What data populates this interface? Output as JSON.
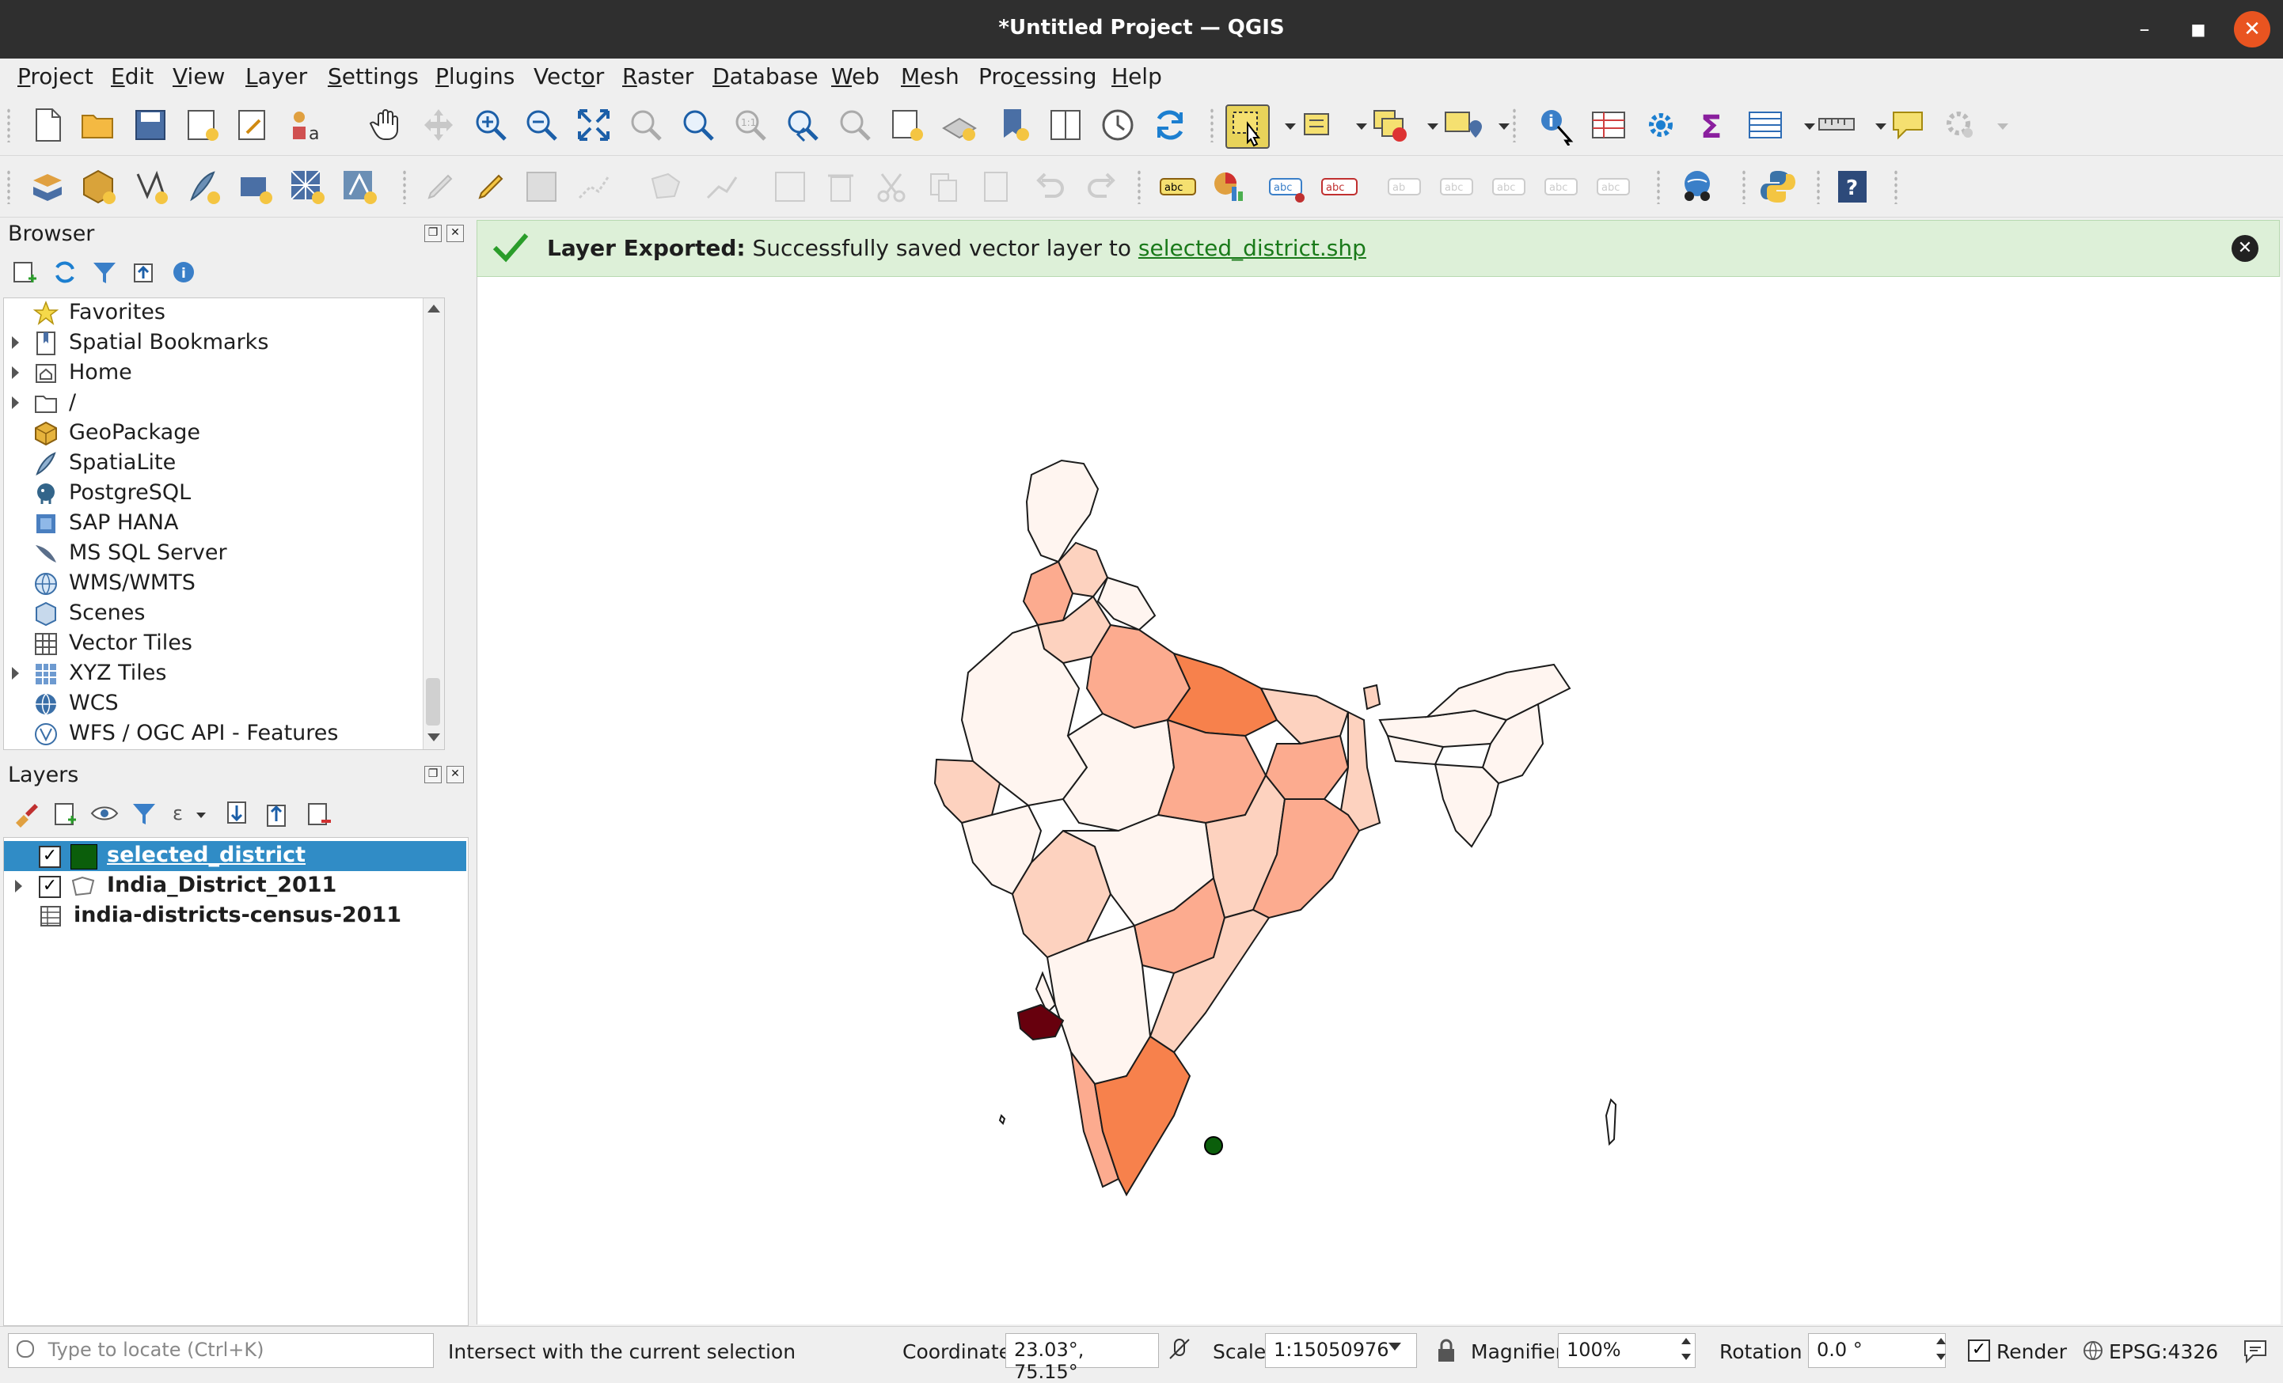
{
  "window": {
    "title": "*Untitled Project — QGIS"
  },
  "menubar": [
    {
      "pre": "",
      "u": "P",
      "post": "roject"
    },
    {
      "pre": "",
      "u": "E",
      "post": "dit"
    },
    {
      "pre": "",
      "u": "V",
      "post": "iew"
    },
    {
      "pre": "",
      "u": "L",
      "post": "ayer"
    },
    {
      "pre": "",
      "u": "S",
      "post": "ettings"
    },
    {
      "pre": "",
      "u": "P",
      "post": "lugins"
    },
    {
      "pre": "Vect",
      "u": "o",
      "post": "r"
    },
    {
      "pre": "",
      "u": "R",
      "post": "aster"
    },
    {
      "pre": "",
      "u": "D",
      "post": "atabase"
    },
    {
      "pre": "",
      "u": "W",
      "post": "eb"
    },
    {
      "pre": "",
      "u": "M",
      "post": "esh"
    },
    {
      "pre": "Pro",
      "u": "c",
      "post": "essing"
    },
    {
      "pre": "",
      "u": "H",
      "post": "elp"
    }
  ],
  "browser": {
    "title": "Browser",
    "items": [
      {
        "label": "Favorites",
        "icon": "star-icon",
        "expandable": false
      },
      {
        "label": "Spatial Bookmarks",
        "icon": "bookmark-icon",
        "expandable": true
      },
      {
        "label": "Home",
        "icon": "home-folder-icon",
        "expandable": true
      },
      {
        "label": "/",
        "icon": "folder-icon",
        "expandable": true
      },
      {
        "label": "GeoPackage",
        "icon": "geopackage-icon",
        "expandable": false
      },
      {
        "label": "SpatiaLite",
        "icon": "spatialite-icon",
        "expandable": false
      },
      {
        "label": "PostgreSQL",
        "icon": "postgresql-icon",
        "expandable": false
      },
      {
        "label": "SAP HANA",
        "icon": "sap-hana-icon",
        "expandable": false
      },
      {
        "label": "MS SQL Server",
        "icon": "mssql-icon",
        "expandable": false
      },
      {
        "label": "WMS/WMTS",
        "icon": "globe-icon",
        "expandable": false
      },
      {
        "label": "Scenes",
        "icon": "scenes-icon",
        "expandable": false
      },
      {
        "label": "Vector Tiles",
        "icon": "grid-icon",
        "expandable": false
      },
      {
        "label": "XYZ Tiles",
        "icon": "tiles-icon",
        "expandable": true
      },
      {
        "label": "WCS",
        "icon": "globe-icon",
        "expandable": false
      },
      {
        "label": "WFS / OGC API - Features",
        "icon": "wfs-icon",
        "expandable": false
      }
    ]
  },
  "layers": {
    "title": "Layers",
    "items": [
      {
        "label": "selected_district",
        "checked": "✓",
        "selected": true,
        "swatch": "#0b5e0b"
      },
      {
        "label": "India_District_2011",
        "checked": "✓",
        "selected": false
      },
      {
        "label": "india-districts-census-2011",
        "checked": "",
        "selected": false
      }
    ]
  },
  "message": {
    "title": "Layer Exported:",
    "text": "Successfully saved vector layer to",
    "link": "selected_district.shp"
  },
  "statusbar": {
    "locate_placeholder": "Type to locate (Ctrl+K)",
    "status_text": "Intersect with the current selection",
    "coordinate_label": "Coordinate",
    "coordinate_value": "23.03°, 75.15°",
    "scale_label": "Scale",
    "scale_value": "1:15050976",
    "magnifier_label": "Magnifier",
    "magnifier_value": "100%",
    "rotation_label": "Rotation",
    "rotation_value": "0.0 °",
    "render_label": "Render",
    "render_checked": "✓",
    "crs": "EPSG:4326"
  },
  "colors": {
    "choropleth": [
      "#fff5f0",
      "#fdd2bf",
      "#fcab8f",
      "#f7814c",
      "#e24a33",
      "#b71c1c",
      "#67000d"
    ],
    "selection": "#0b5e0b",
    "message_bg": "#ddf0d8",
    "title_bg": "#2f2f2f",
    "close_button": "#e95420"
  }
}
